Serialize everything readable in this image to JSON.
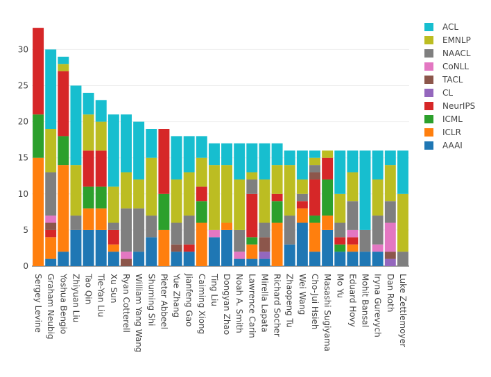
{
  "chart_data": {
    "type": "bar",
    "stacked": true,
    "categories": [
      "Sergey Levine",
      "Graham Neubig",
      "Yoshua Bengio",
      "Zhiyuan Liu",
      "Tao Qin",
      "Tie-Yan Liu",
      "Xu Sun",
      "Ryan Cotterell",
      "William Yang Wang",
      "Shuming Shi",
      "Pieter Abbeel",
      "Yue Zhang",
      "Jianfeng Gao",
      "Caiming Xiong",
      "Ting Liu",
      "Dongyan Zhao",
      "Noah A. Smith",
      "Lawrence Carin",
      "Mirella Lapata",
      "Richard Socher",
      "Zhaopeng Tu",
      "Wei Wang",
      "Cho-Jui Hsieh",
      "Masashi Sugiyama",
      "Mo Yu",
      "Eduard Hovy",
      "Mohit Bansal",
      "Iryna Gurevych",
      "Dan Roth",
      "Luke Zettlemoyer"
    ],
    "series": [
      {
        "name": "AAAI",
        "color": "#1f77b4",
        "values": [
          0,
          1,
          2,
          5,
          5,
          5,
          2,
          0,
          2,
          4,
          0,
          2,
          2,
          0,
          4,
          5,
          1,
          1,
          1,
          0,
          3,
          6,
          2,
          5,
          2,
          2,
          2,
          2,
          0,
          0
        ]
      },
      {
        "name": "ICLR",
        "color": "#ff7f0e",
        "values": [
          15,
          3,
          12,
          0,
          3,
          3,
          1,
          0,
          0,
          0,
          5,
          0,
          0,
          6,
          0,
          1,
          0,
          2,
          0,
          6,
          0,
          2,
          4,
          2,
          0,
          1,
          0,
          0,
          0,
          0
        ]
      },
      {
        "name": "ICML",
        "color": "#2ca02c",
        "values": [
          6,
          0,
          4,
          0,
          3,
          3,
          0,
          0,
          0,
          0,
          5,
          0,
          0,
          3,
          0,
          0,
          0,
          1,
          0,
          3,
          0,
          0,
          1,
          5,
          1,
          0,
          0,
          0,
          0,
          0
        ]
      },
      {
        "name": "NeurIPS",
        "color": "#d62728",
        "values": [
          12,
          1,
          9,
          0,
          5,
          5,
          2,
          0,
          0,
          0,
          9,
          0,
          1,
          2,
          0,
          0,
          0,
          6,
          0,
          1,
          0,
          1,
          5,
          3,
          1,
          1,
          0,
          0,
          0,
          0
        ]
      },
      {
        "name": "CL",
        "color": "#9467bd",
        "values": [
          0,
          0,
          0,
          0,
          0,
          0,
          0,
          0,
          0,
          0,
          0,
          0,
          0,
          0,
          0,
          0,
          0,
          0,
          1,
          0,
          0,
          0,
          0,
          0,
          0,
          0,
          0,
          0,
          1,
          0
        ]
      },
      {
        "name": "TACL",
        "color": "#8c564b",
        "values": [
          0,
          1,
          0,
          0,
          0,
          0,
          0,
          1,
          0,
          0,
          0,
          1,
          0,
          0,
          0,
          0,
          0,
          0,
          2,
          0,
          0,
          0,
          1,
          0,
          0,
          0,
          0,
          0,
          1,
          0
        ]
      },
      {
        "name": "CoNLL",
        "color": "#e377c2",
        "values": [
          0,
          1,
          0,
          0,
          0,
          0,
          0,
          1,
          0,
          0,
          0,
          0,
          0,
          0,
          1,
          0,
          1,
          0,
          0,
          0,
          0,
          0,
          0,
          0,
          0,
          1,
          0,
          1,
          4,
          0
        ]
      },
      {
        "name": "NAACL",
        "color": "#7f7f7f",
        "values": [
          0,
          6,
          0,
          2,
          0,
          0,
          1,
          6,
          6,
          3,
          0,
          3,
          4,
          0,
          0,
          0,
          3,
          2,
          2,
          0,
          4,
          1,
          1,
          0,
          2,
          4,
          3,
          4,
          3,
          2
        ]
      },
      {
        "name": "EMNLP",
        "color": "#bcbd22",
        "values": [
          0,
          6,
          1,
          7,
          5,
          4,
          5,
          5,
          4,
          8,
          0,
          6,
          6,
          4,
          9,
          8,
          7,
          1,
          6,
          4,
          7,
          2,
          1,
          1,
          4,
          4,
          0,
          5,
          5,
          8
        ]
      },
      {
        "name": "ACL",
        "color": "#17becf",
        "values": [
          0,
          11,
          1,
          11,
          3,
          3,
          10,
          8,
          8,
          4,
          0,
          6,
          5,
          3,
          3,
          3,
          5,
          4,
          5,
          3,
          2,
          4,
          1,
          0,
          6,
          3,
          11,
          4,
          2,
          6
        ]
      }
    ],
    "legend_order": [
      "ACL",
      "EMNLP",
      "NAACL",
      "CoNLL",
      "TACL",
      "CL",
      "NeurIPS",
      "ICML",
      "ICLR",
      "AAAI"
    ],
    "yticks": [
      0,
      5,
      10,
      15,
      20,
      25,
      30
    ],
    "ylim": [
      0,
      34.74
    ],
    "grid": true,
    "legend_position": "right"
  }
}
